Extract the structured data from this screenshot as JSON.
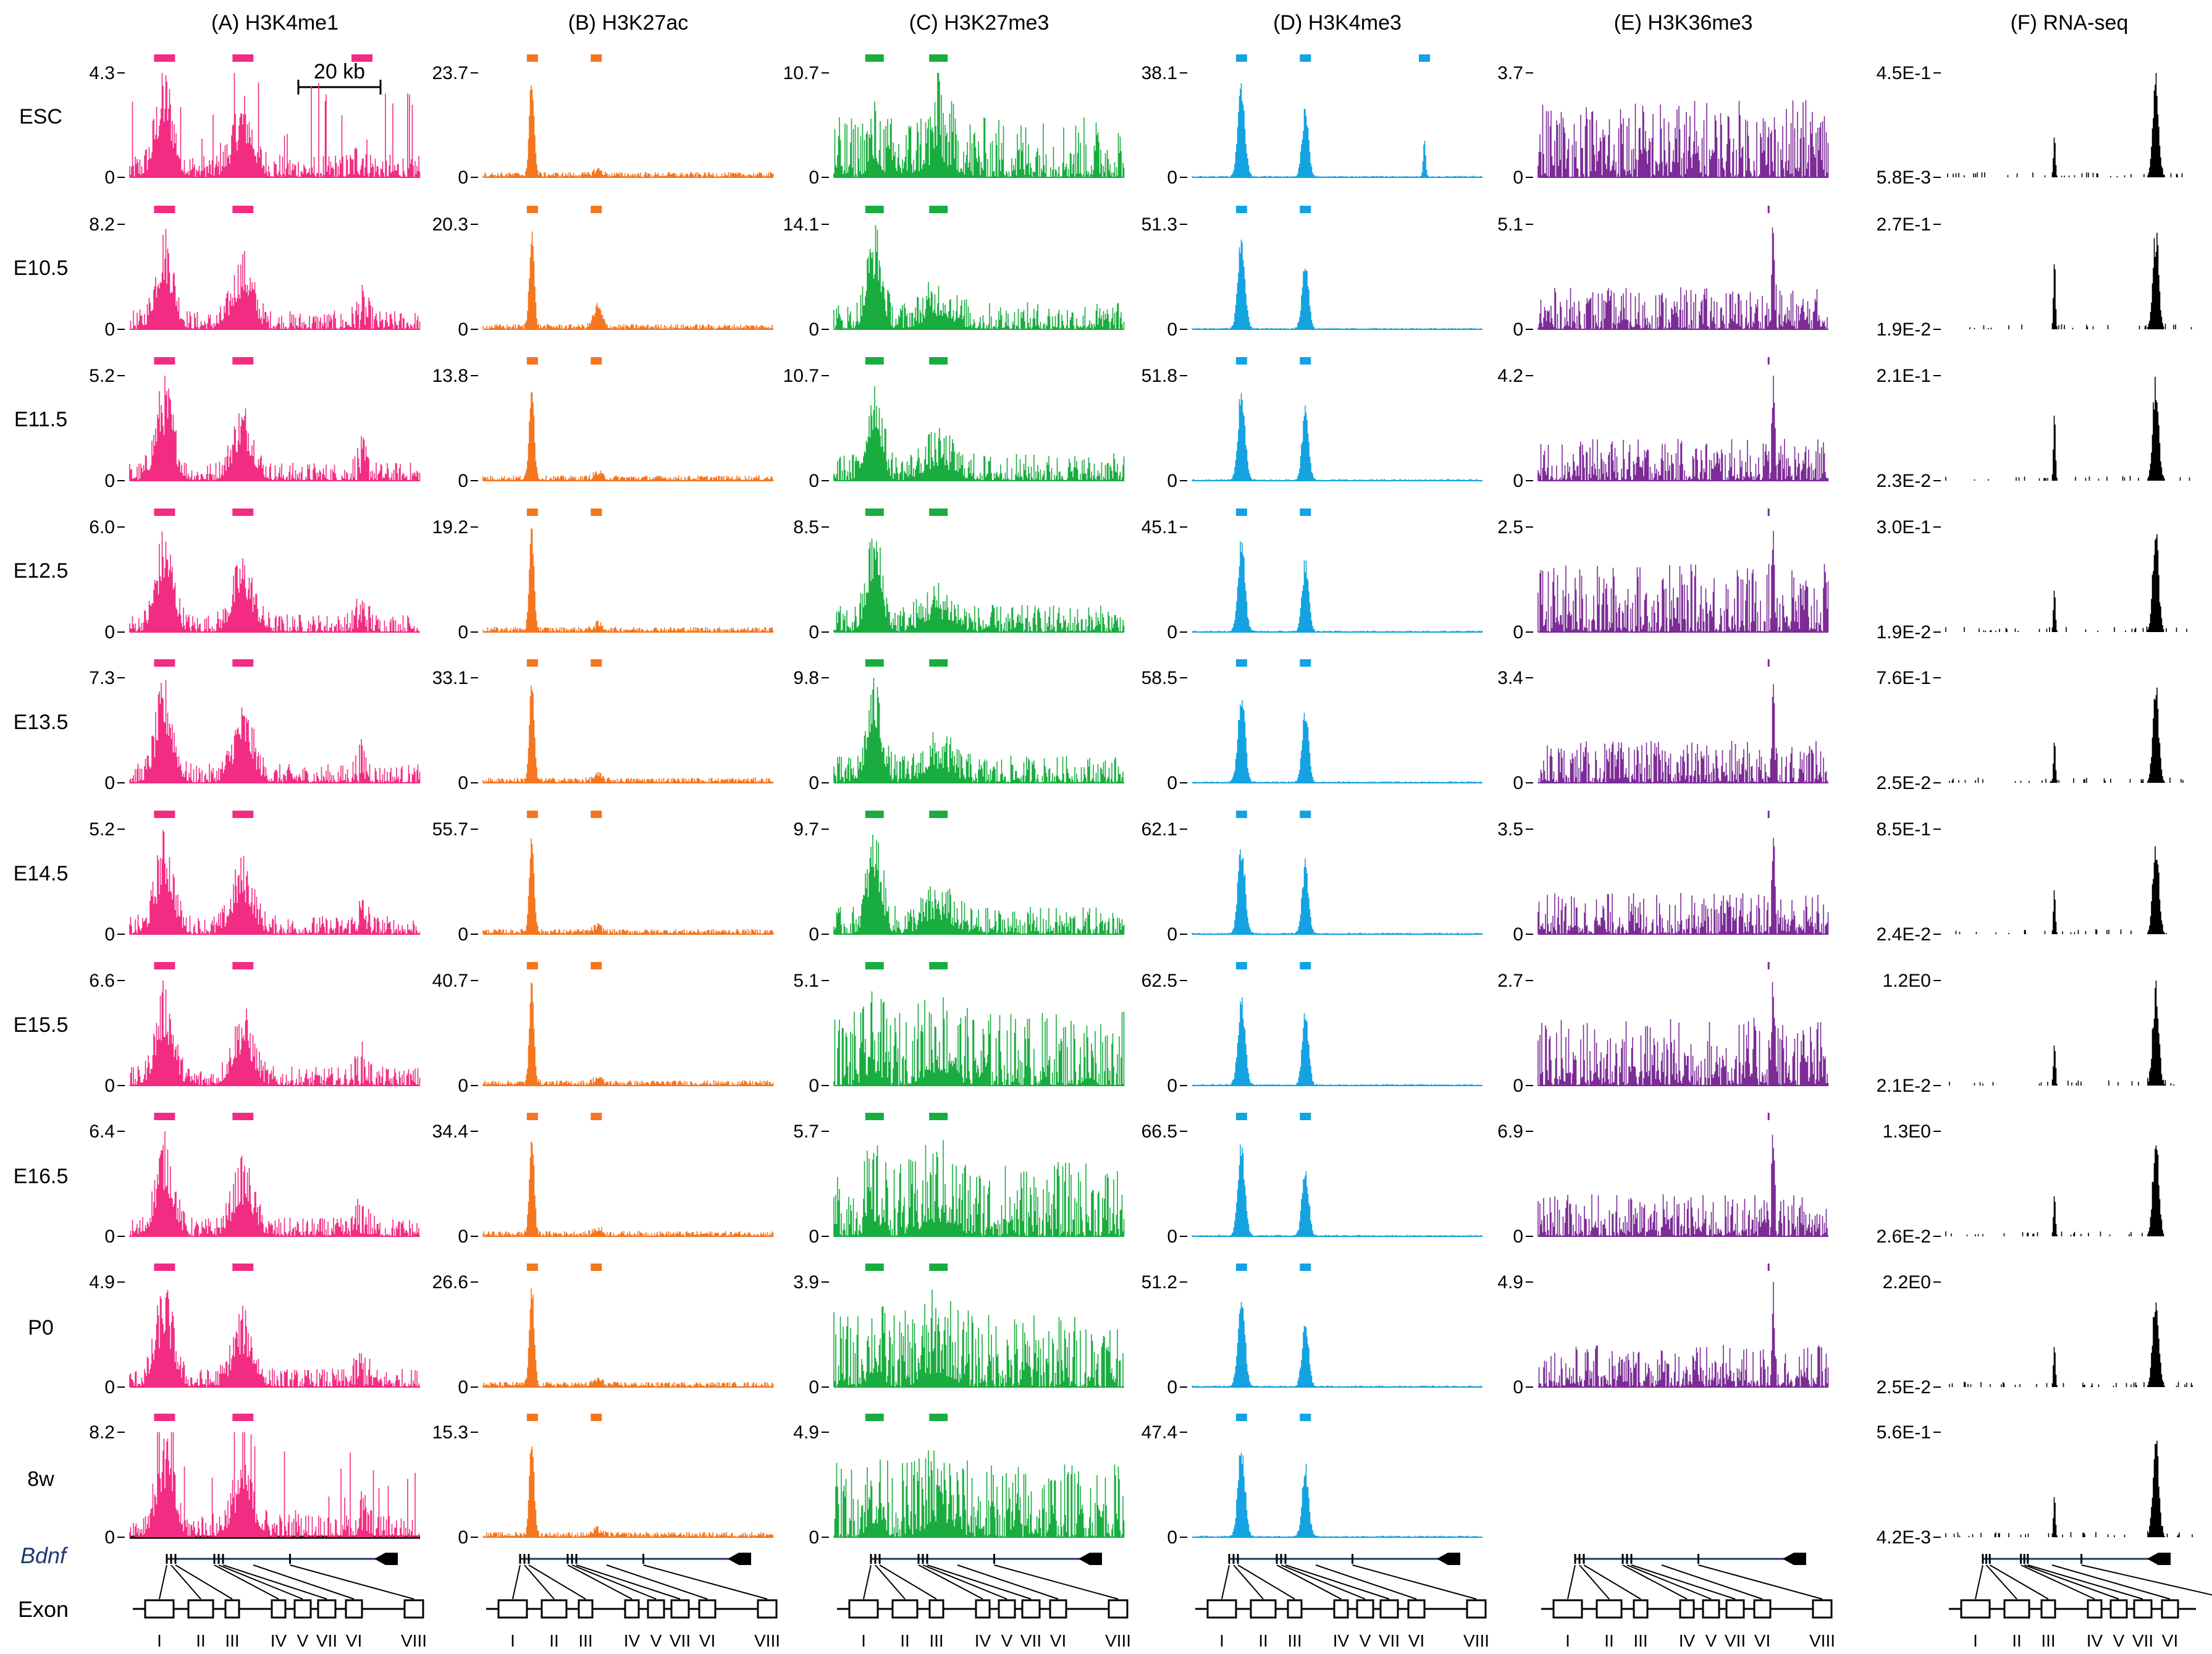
{
  "chart_data": {
    "type": "genome-browser-track-grid",
    "title": "",
    "columns": [
      {
        "id": "A",
        "label": "(A) H3K4me1",
        "color": "#f22c82"
      },
      {
        "id": "B",
        "label": "(B) H3K27ac",
        "color": "#f5761f"
      },
      {
        "id": "C",
        "label": "(C) H3K27me3",
        "color": "#19ad3f"
      },
      {
        "id": "D",
        "label": "(D) H3K4me3",
        "color": "#14a3e0"
      },
      {
        "id": "E",
        "label": "(E) H3K36me3",
        "color": "#7c2b97"
      },
      {
        "id": "F",
        "label": "(F) RNA-seq",
        "color": "#000000"
      }
    ],
    "rows": [
      "ESC",
      "E10.5",
      "E11.5",
      "E12.5",
      "E13.5",
      "E14.5",
      "E15.5",
      "E16.5",
      "P0",
      "8w"
    ],
    "scale_bar": "20 kb",
    "y_max": {
      "A": [
        "4.3",
        "8.2",
        "5.2",
        "6.0",
        "7.3",
        "5.2",
        "6.6",
        "6.4",
        "4.9",
        "8.2"
      ],
      "B": [
        "23.7",
        "20.3",
        "13.8",
        "19.2",
        "33.1",
        "55.7",
        "40.7",
        "34.4",
        "26.6",
        "15.3"
      ],
      "C": [
        "10.7",
        "14.1",
        "10.7",
        "8.5",
        "9.8",
        "9.7",
        "5.1",
        "5.7",
        "3.9",
        "4.9"
      ],
      "D": [
        "38.1",
        "51.3",
        "51.8",
        "45.1",
        "58.5",
        "62.1",
        "62.5",
        "66.5",
        "51.2",
        "47.4"
      ],
      "E": [
        "3.7",
        "5.1",
        "4.2",
        "2.5",
        "3.4",
        "3.5",
        "2.7",
        "6.9",
        "4.9",
        ""
      ],
      "F": [
        "4.5E-1",
        "2.7E-1",
        "2.1E-1",
        "3.0E-1",
        "7.6E-1",
        "8.5E-1",
        "1.2E0",
        "1.3E0",
        "2.2E0",
        "5.6E-1"
      ]
    },
    "y_min": {
      "A": [
        "0",
        "0",
        "0",
        "0",
        "0",
        "0",
        "0",
        "0",
        "0",
        "0"
      ],
      "B": [
        "0",
        "0",
        "0",
        "0",
        "0",
        "0",
        "0",
        "0",
        "0",
        "0"
      ],
      "C": [
        "0",
        "0",
        "0",
        "0",
        "0",
        "0",
        "0",
        "0",
        "0",
        "0"
      ],
      "D": [
        "0",
        "0",
        "0",
        "0",
        "0",
        "0",
        "0",
        "0",
        "0",
        "0"
      ],
      "E": [
        "0",
        "0",
        "0",
        "0",
        "0",
        "0",
        "0",
        "0",
        "0",
        ""
      ],
      "F": [
        "5.8E-3",
        "1.9E-2",
        "2.3E-2",
        "1.9E-2",
        "2.5E-2",
        "2.4E-2",
        "2.1E-2",
        "2.6E-2",
        "2.5E-2",
        "4.2E-3"
      ]
    },
    "peak_positions_fraction_of_locus": {
      "A": [
        0.12,
        0.39,
        0.8
      ],
      "B": [
        0.17,
        0.39
      ],
      "C": [
        0.14,
        0.36
      ],
      "D": [
        0.17,
        0.39,
        0.8
      ],
      "E": [
        0.81
      ],
      "F": [
        0.44,
        0.85
      ]
    },
    "gene": {
      "name": "Bdnf",
      "row_label": "Exon",
      "exons": [
        "I",
        "II",
        "III",
        "IV",
        "V",
        "VII",
        "VI",
        "VIII"
      ]
    }
  }
}
